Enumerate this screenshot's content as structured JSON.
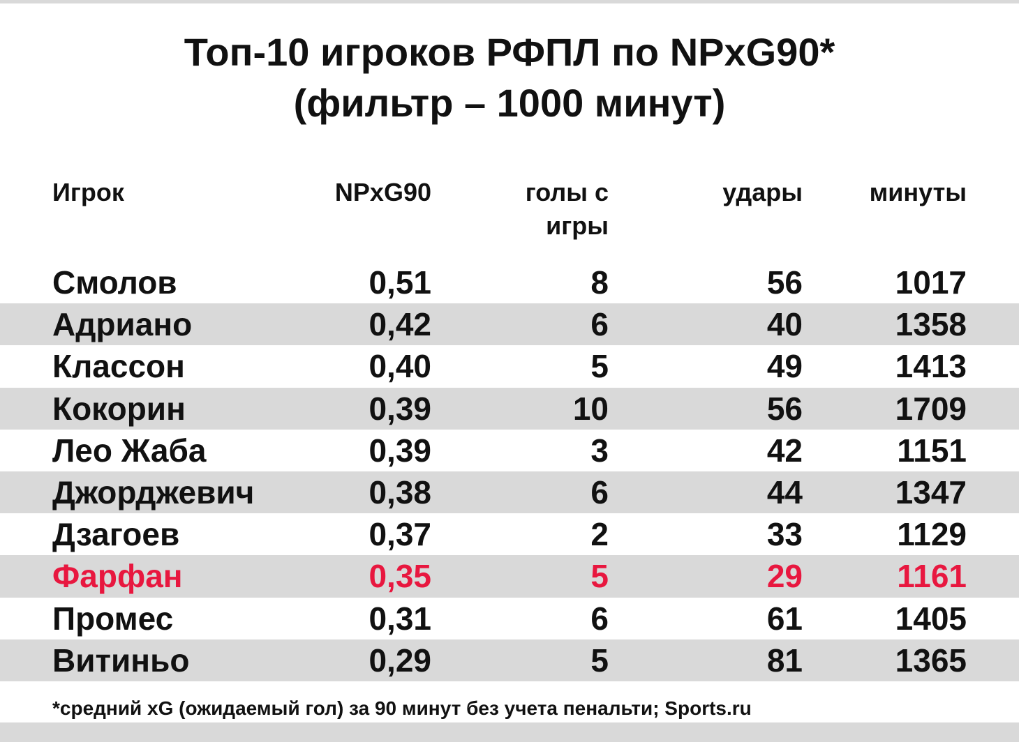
{
  "header": {
    "title": [
      "Топ-10 игроков РФПЛ по NPxG90*",
      "(фильтр – 1000 минут)"
    ]
  },
  "table": {
    "columns": [
      "Игрок",
      "NPxG90",
      "голы с игры",
      "удары",
      "минуты"
    ],
    "rows": [
      [
        "Смолов",
        "0,51",
        "8",
        "56",
        "1017"
      ],
      [
        "Адриано",
        "0,42",
        "6",
        "40",
        "1358"
      ],
      [
        "Классон",
        "0,40",
        "5",
        "49",
        "1413"
      ],
      [
        "Кокорин",
        "0,39",
        "10",
        "56",
        "1709"
      ],
      [
        "Лео Жаба",
        "0,39",
        "3",
        "42",
        "1151"
      ],
      [
        "Джорджевич",
        "0,38",
        "6",
        "44",
        "1347"
      ],
      [
        "Дзагоев",
        "0,37",
        "2",
        "33",
        "1129"
      ],
      [
        "Фарфан",
        "0,35",
        "5",
        "29",
        "1161"
      ],
      [
        "Промес",
        "0,31",
        "6",
        "61",
        "1405"
      ],
      [
        "Витиньо",
        "0,29",
        "5",
        "81",
        "1365"
      ]
    ],
    "highlight": {
      "row": 7,
      "color": "#e8173f"
    },
    "stripe_color": "#d9d9d9"
  },
  "footer": {
    "note": "*средний xG (ожидаемый гол) за 90 минут без учета пенальти; Sports.ru"
  }
}
